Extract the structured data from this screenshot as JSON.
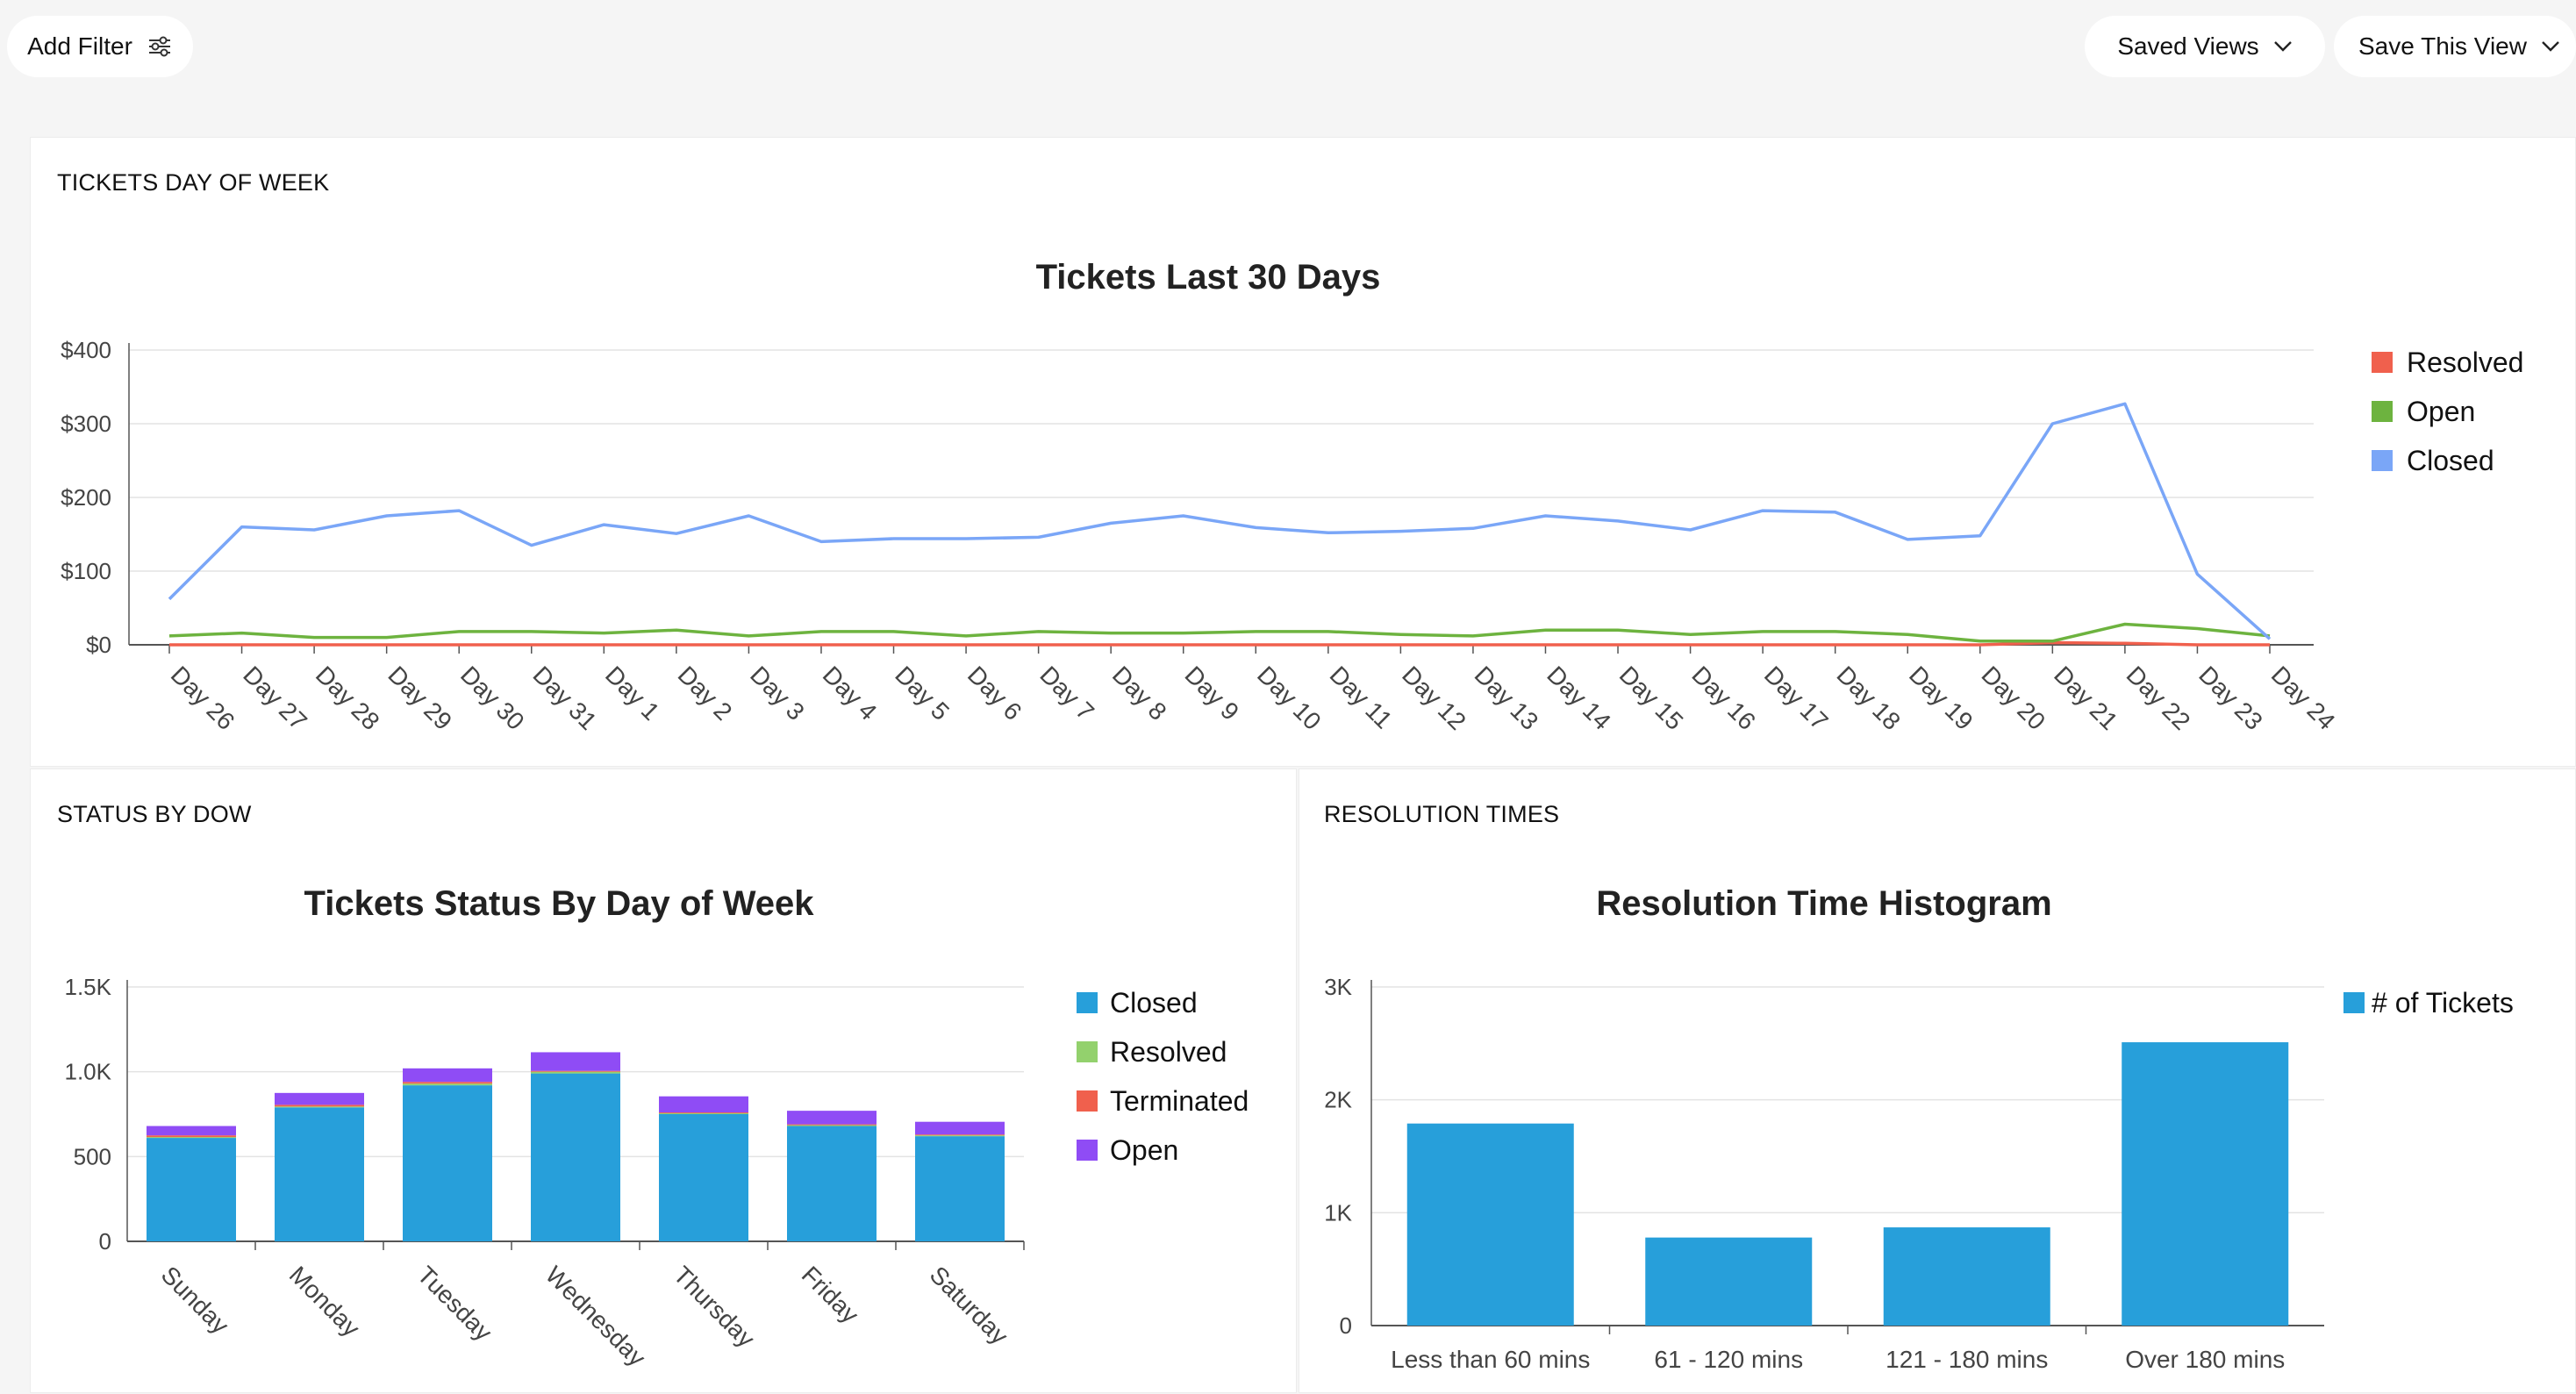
{
  "toolbar": {
    "add_filter_label": "Add Filter",
    "saved_views_label": "Saved Views",
    "save_view_label": "Save This View"
  },
  "panels": {
    "dow_title": "TICKETS DAY OF WEEK",
    "status_title": "STATUS BY DOW",
    "resolution_title": "RESOLUTION TIMES"
  },
  "colors": {
    "closed_line": "#7aa6f7",
    "open_line": "#6db33f",
    "resolved_line": "#f0604d",
    "bar_blue": "#279fda",
    "bar_green": "#93d16d",
    "bar_red": "#f0604d",
    "bar_purple": "#8f4cf5",
    "grid": "#e3e3e3",
    "axis": "#555555"
  },
  "chart_data": [
    {
      "type": "line",
      "title": "Tickets Last 30 Days",
      "categories": [
        "Day 26",
        "Day 27",
        "Day 28",
        "Day 29",
        "Day 30",
        "Day 31",
        "Day 1",
        "Day 2",
        "Day 3",
        "Day 4",
        "Day 5",
        "Day 6",
        "Day 7",
        "Day 8",
        "Day 9",
        "Day 10",
        "Day 11",
        "Day 12",
        "Day 13",
        "Day 14",
        "Day 15",
        "Day 16",
        "Day 17",
        "Day 18",
        "Day 19",
        "Day 20",
        "Day 21",
        "Day 22",
        "Day 23",
        "Day 24"
      ],
      "series": [
        {
          "name": "Resolved",
          "color": "#f0604d",
          "values": [
            0,
            0,
            0,
            0,
            0,
            0,
            0,
            0,
            0,
            0,
            0,
            0,
            0,
            0,
            0,
            0,
            0,
            0,
            0,
            0,
            0,
            0,
            0,
            0,
            0,
            0,
            3,
            2,
            0,
            0
          ]
        },
        {
          "name": "Open",
          "color": "#6db33f",
          "values": [
            12,
            16,
            10,
            10,
            18,
            18,
            16,
            20,
            12,
            18,
            18,
            12,
            18,
            16,
            16,
            18,
            18,
            14,
            12,
            20,
            20,
            14,
            18,
            18,
            14,
            5,
            5,
            28,
            22,
            12
          ]
        },
        {
          "name": "Closed",
          "color": "#7aa6f7",
          "values": [
            62,
            160,
            156,
            175,
            182,
            135,
            163,
            151,
            175,
            140,
            144,
            144,
            146,
            165,
            175,
            159,
            152,
            154,
            158,
            175,
            168,
            156,
            182,
            180,
            143,
            148,
            300,
            327,
            96,
            8
          ]
        }
      ],
      "yticks": [
        "$0",
        "$100",
        "$200",
        "$300",
        "$400"
      ],
      "ylim": [
        0,
        400
      ],
      "grid": true,
      "legend": "right"
    },
    {
      "type": "bar",
      "title": "Tickets Status By Day of Week",
      "stacked": true,
      "categories": [
        "Sunday",
        "Monday",
        "Tuesday",
        "Wednesday",
        "Thursday",
        "Friday",
        "Saturday"
      ],
      "series": [
        {
          "name": "Closed",
          "color": "#279fda",
          "values": [
            610,
            790,
            920,
            990,
            750,
            680,
            620
          ]
        },
        {
          "name": "Resolved",
          "color": "#93d16d",
          "values": [
            5,
            5,
            10,
            10,
            5,
            5,
            5
          ]
        },
        {
          "name": "Terminated",
          "color": "#f0604d",
          "values": [
            10,
            10,
            10,
            5,
            5,
            5,
            5
          ]
        },
        {
          "name": "Open",
          "color": "#8f4cf5",
          "values": [
            55,
            70,
            80,
            110,
            95,
            80,
            75
          ]
        }
      ],
      "yticks": [
        "0",
        "500",
        "1.0K",
        "1.5K"
      ],
      "ylim": [
        0,
        1500
      ],
      "grid": true,
      "legend": "right"
    },
    {
      "type": "bar",
      "title": "Resolution Time Histogram",
      "categories": [
        "Less than 60 mins",
        "61 - 120 mins",
        "121 - 180 mins",
        "Over 180 mins"
      ],
      "series": [
        {
          "name": "# of Tickets",
          "color": "#279fda",
          "values": [
            1790,
            780,
            870,
            2510
          ]
        }
      ],
      "yticks": [
        "0",
        "1K",
        "2K",
        "3K"
      ],
      "ylim": [
        0,
        3000
      ],
      "grid": true,
      "legend": "right"
    }
  ]
}
